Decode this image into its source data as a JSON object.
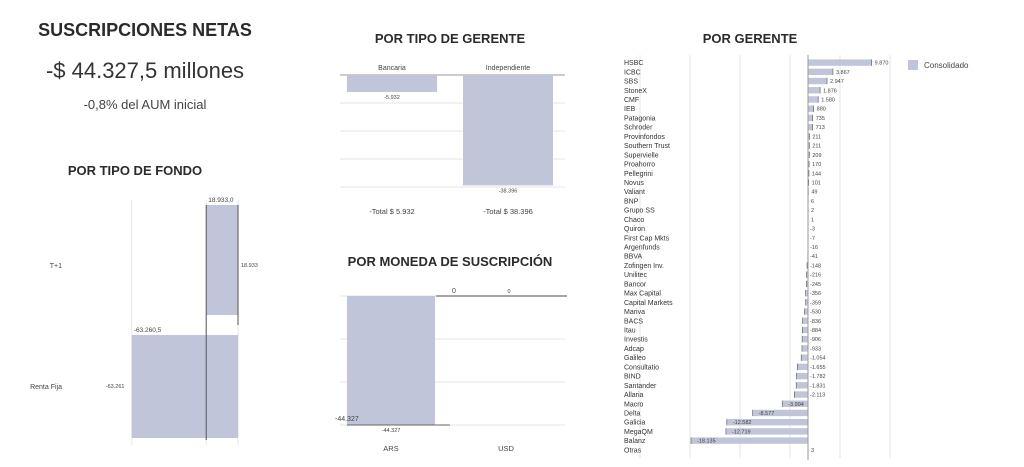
{
  "summary": {
    "title": "SUSCRIPCIONES NETAS",
    "value": "-$ 44.327,5 millones",
    "subtitle": "-0,8% del AUM inicial"
  },
  "colors": {
    "bar": "#c0c5da",
    "axis": "#555555",
    "grid": "#e6e6e6"
  },
  "chart_data": [
    {
      "id": "tipo-fondo",
      "type": "bar",
      "title": "POR TIPO DE FONDO",
      "categories": [
        "T+1",
        "Renta Fija"
      ],
      "values": [
        18933,
        -63261
      ],
      "value_labels": [
        "18.933",
        "-63.261"
      ],
      "callouts": [
        "18.933,0",
        "-63.260,5"
      ]
    },
    {
      "id": "tipo-gerente",
      "type": "bar",
      "title": "POR TIPO DE GERENTE",
      "categories": [
        "Bancaria",
        "Independiente"
      ],
      "values": [
        -5932,
        -38396
      ],
      "value_labels": [
        "-5.932",
        "-38.396"
      ],
      "totals": [
        "-Total $ 5.932",
        "-Total $ 38.396"
      ]
    },
    {
      "id": "moneda",
      "type": "bar",
      "title": "POR MONEDA DE SUSCRIPCIÓN",
      "categories": [
        "ARS",
        "USD"
      ],
      "values": [
        -44327,
        0
      ],
      "value_labels": [
        "-44.327",
        "0"
      ],
      "callouts": [
        "-44.327",
        "0"
      ]
    },
    {
      "id": "gerente",
      "type": "bar",
      "title": "POR GERENTE",
      "legend": [
        "Consolidado"
      ],
      "categories": [
        "HSBC",
        "ICBC",
        "SBS",
        "StoneX",
        "CMF",
        "IEB",
        "Patagonia",
        "Schroder",
        "Provinfondos",
        "Southern Trust",
        "Supervielle",
        "Proahorro",
        "Pellegrini",
        "Novus",
        "Valiant",
        "BNP",
        "Grupo SS",
        "Chaco",
        "Quiron",
        "First Cap Mkts",
        "Argenfunds",
        "BBVA",
        "Zofingen Inv.",
        "Unilitec",
        "Bancor",
        "Max Capital",
        "Capital Markets",
        "Mariva",
        "BACS",
        "Itau",
        "Investis",
        "Adcap",
        "Galileo",
        "Consultatio",
        "BIND",
        "Santander",
        "Allaria",
        "Macro",
        "Delta",
        "Galicia",
        "MegaQM",
        "Balanz",
        "Otras"
      ],
      "values": [
        9870,
        3867,
        2947,
        1876,
        1580,
        880,
        735,
        713,
        211,
        211,
        209,
        170,
        144,
        101,
        49,
        6,
        2,
        1,
        -3,
        -7,
        -16,
        -41,
        -148,
        -216,
        -245,
        -356,
        -359,
        -530,
        -836,
        -884,
        -906,
        -933,
        -1054,
        -1655,
        -1782,
        -1831,
        -2113,
        -3994,
        -8577,
        -12582,
        -12719,
        -18135,
        3
      ],
      "value_labels": [
        "9.870",
        "3.867",
        "2.947",
        "1.876",
        "1.580",
        "880",
        "735",
        "713",
        "211",
        "211",
        "209",
        "170",
        "144",
        "101",
        "49",
        "6",
        "2",
        "1",
        "-3",
        "-7",
        "-16",
        "-41",
        "-148",
        "-216",
        "-245",
        "-356",
        "-359",
        "-530",
        "-836",
        "-884",
        "-906",
        "-933",
        "-1.054",
        "-1.655",
        "-1.782",
        "-1.831",
        "-2.113",
        "-3.994",
        "-8.577",
        "-12.582",
        "-12.719",
        "-18.135",
        "3"
      ]
    }
  ]
}
